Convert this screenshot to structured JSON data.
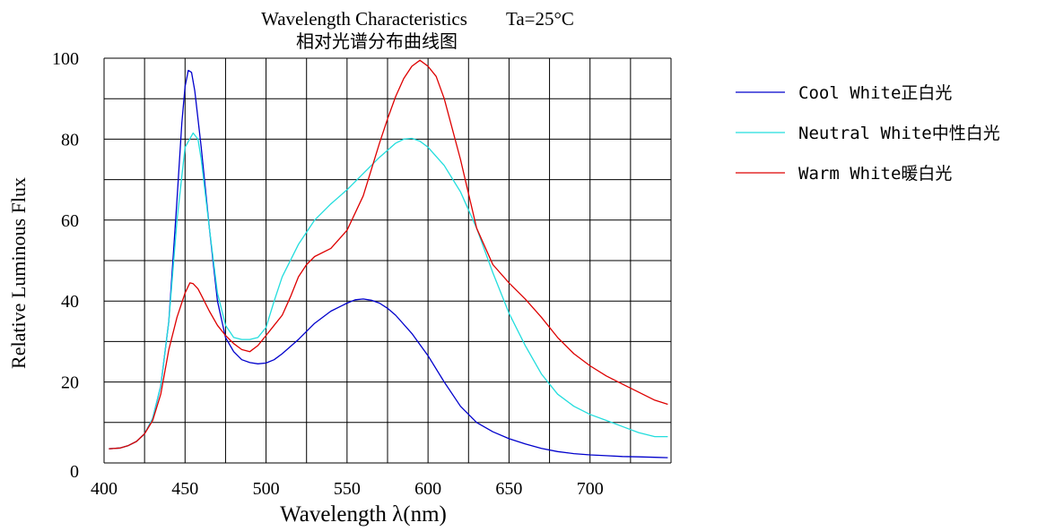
{
  "chart_data": {
    "type": "line",
    "title": "Wavelength Characteristics",
    "title_suffix": "Ta=25°C",
    "subtitle": "相对光谱分布曲线图",
    "xlabel": "Wavelength λ(nm)",
    "ylabel": "Relative Luminous Flux",
    "xlim": [
      400,
      750
    ],
    "ylim": [
      0,
      100
    ],
    "xticks": [
      "400",
      "450",
      "500",
      "550",
      "600",
      "650",
      "700"
    ],
    "yticks": [
      "0",
      "20",
      "40",
      "60",
      "80",
      "100"
    ],
    "grid": true,
    "legend_position": "right",
    "series": [
      {
        "name": "Cool White正白光",
        "color": "#0000cc",
        "x": [
          403,
          410,
          415,
          420,
          425,
          430,
          435,
          440,
          445,
          448,
          450,
          452,
          454,
          456,
          458,
          460,
          465,
          470,
          475,
          480,
          485,
          490,
          495,
          500,
          505,
          510,
          520,
          530,
          540,
          550,
          555,
          560,
          565,
          570,
          575,
          580,
          590,
          600,
          610,
          620,
          630,
          640,
          650,
          660,
          670,
          680,
          690,
          700,
          710,
          720,
          730,
          740,
          748
        ],
        "y": [
          3.5,
          3.7,
          4.3,
          5.3,
          7.2,
          11,
          19,
          35,
          65,
          84,
          93,
          97,
          96.5,
          92,
          85,
          78,
          58,
          40,
          31,
          27.5,
          25.5,
          24.8,
          24.5,
          24.7,
          25.5,
          27,
          30.5,
          34.5,
          37.5,
          39.5,
          40.3,
          40.5,
          40.2,
          39.5,
          38.2,
          36.5,
          32,
          26.5,
          20,
          14,
          10,
          7.7,
          6,
          4.7,
          3.6,
          2.8,
          2.3,
          2.0,
          1.8,
          1.6,
          1.5,
          1.4,
          1.3
        ]
      },
      {
        "name": "Neutral White中性白光",
        "color": "#22dddd",
        "x": [
          403,
          410,
          415,
          420,
          425,
          430,
          435,
          440,
          445,
          450,
          455,
          458,
          460,
          465,
          470,
          475,
          480,
          485,
          490,
          495,
          500,
          505,
          510,
          520,
          530,
          540,
          550,
          560,
          570,
          580,
          585,
          590,
          595,
          600,
          610,
          620,
          630,
          640,
          650,
          660,
          670,
          680,
          690,
          700,
          710,
          720,
          730,
          740,
          748
        ],
        "y": [
          3.5,
          3.7,
          4.3,
          5.3,
          7.2,
          11,
          19,
          35,
          60,
          78,
          81.5,
          80,
          75,
          58,
          42,
          34,
          31,
          30.5,
          30.5,
          31,
          33.5,
          40,
          46,
          54,
          60,
          64,
          67.5,
          71.5,
          75.5,
          79,
          80,
          80.2,
          79.5,
          78,
          73.5,
          67,
          58,
          47,
          37,
          29,
          22,
          17,
          14,
          12,
          10.5,
          9,
          7.5,
          6.5,
          6.5
        ]
      },
      {
        "name": "Warm White暖白光",
        "color": "#dd0000",
        "x": [
          403,
          410,
          415,
          420,
          425,
          430,
          435,
          440,
          445,
          450,
          453,
          455,
          458,
          460,
          465,
          470,
          475,
          480,
          485,
          490,
          495,
          500,
          505,
          510,
          515,
          520,
          525,
          530,
          540,
          550,
          560,
          570,
          575,
          580,
          585,
          590,
          595,
          600,
          605,
          610,
          620,
          630,
          640,
          650,
          660,
          670,
          680,
          690,
          700,
          710,
          720,
          730,
          740,
          748
        ],
        "y": [
          3.5,
          3.7,
          4.3,
          5.3,
          7.2,
          10.5,
          17,
          28,
          36,
          42,
          44.5,
          44.3,
          43,
          41.5,
          37.5,
          34,
          31.5,
          29.5,
          28,
          27.5,
          29,
          31.5,
          34,
          36.5,
          41,
          46,
          49,
          51,
          53,
          57.5,
          66,
          79,
          85,
          90.5,
          95,
          98,
          99.5,
          98,
          95.5,
          90,
          75,
          58,
          49,
          44.5,
          40.5,
          36,
          31,
          27,
          24,
          21.5,
          19.5,
          17.5,
          15.5,
          14.5
        ]
      }
    ]
  }
}
